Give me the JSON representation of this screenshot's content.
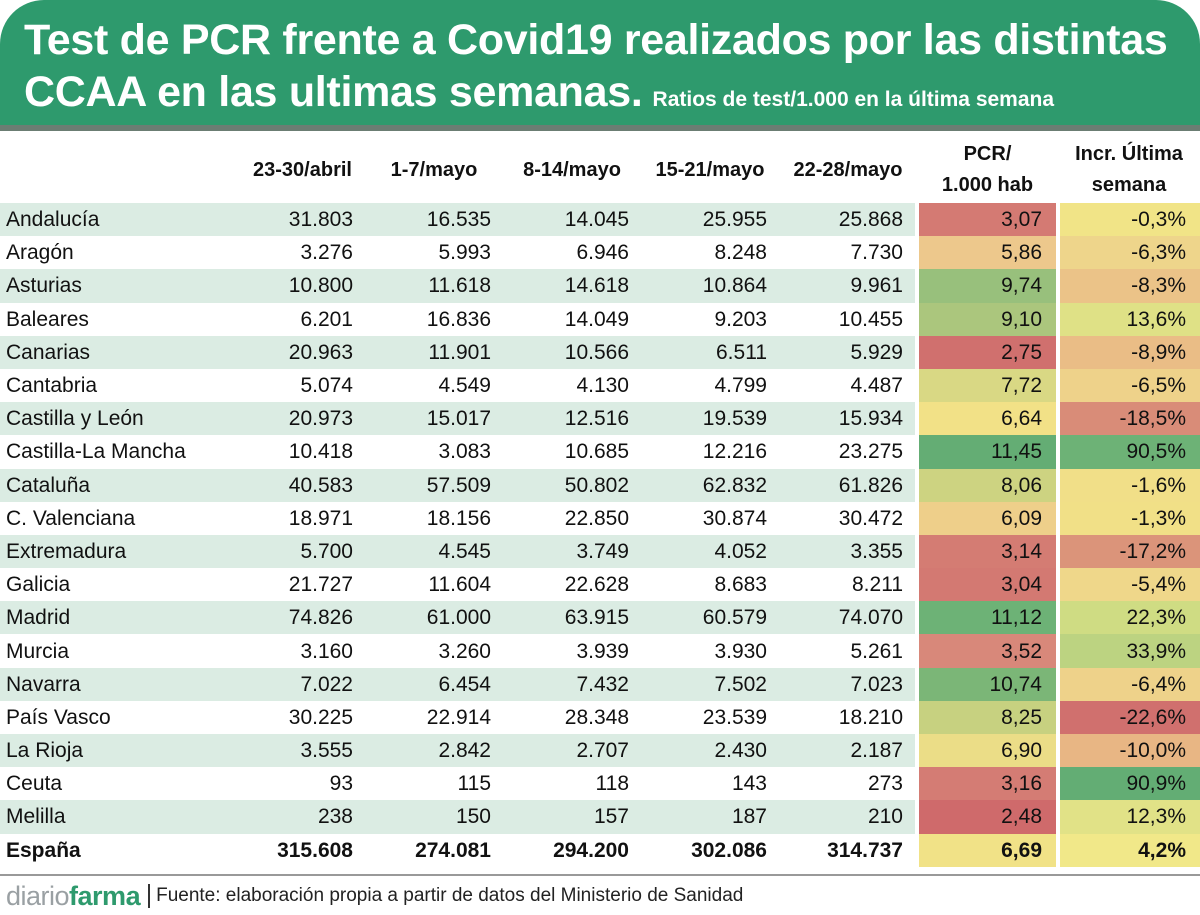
{
  "header": {
    "title_line1": "Test de PCR frente a Covid19 realizados por las distintas",
    "title_line2": "CCAA en las ultimas semanas.",
    "subtitle": "Ratios de test/1.000 en la última semana"
  },
  "colors": {
    "header_green": "#2e9a6d",
    "row_stripe": "#dbece3"
  },
  "footer": {
    "logo_part1": "diario",
    "logo_part2": "farma",
    "source": "Fuente: elaboración propia a partir de datos del Ministerio de Sanidad"
  },
  "chart_data": {
    "type": "table",
    "columns": [
      "",
      "23-30/abril",
      "1-7/mayo",
      "8-14/mayo",
      "15-21/mayo",
      "22-28/mayo",
      "PCR/\n1.000 hab",
      "Incr. Última\nsemana"
    ],
    "column_header_lines": [
      [
        ""
      ],
      [
        "23-30/abril"
      ],
      [
        "1-7/mayo"
      ],
      [
        "8-14/mayo"
      ],
      [
        "15-21/mayo"
      ],
      [
        "22-28/mayo"
      ],
      [
        "PCR/",
        "1.000 hab"
      ],
      [
        "Incr. Última",
        "semana"
      ]
    ],
    "rows": [
      {
        "region": "Andalucía",
        "values": [
          "31.803",
          "16.535",
          "14.045",
          "25.955",
          "25.868"
        ],
        "ratio": "3,07",
        "incr": "-0,3%",
        "ratio_color": "#d47a73",
        "incr_color": "#f1e487"
      },
      {
        "region": "Aragón",
        "values": [
          "3.276",
          "5.993",
          "6.946",
          "8.248",
          "7.730"
        ],
        "ratio": "5,86",
        "incr": "-6,3%",
        "ratio_color": "#edc88c",
        "incr_color": "#eed58b"
      },
      {
        "region": "Asturias",
        "values": [
          "10.800",
          "11.618",
          "14.618",
          "10.864",
          "9.961"
        ],
        "ratio": "9,74",
        "incr": "-8,3%",
        "ratio_color": "#98c07c",
        "incr_color": "#ebc388"
      },
      {
        "region": "Baleares",
        "values": [
          "6.201",
          "16.836",
          "14.049",
          "9.203",
          "10.455"
        ],
        "ratio": "9,10",
        "incr": "13,6%",
        "ratio_color": "#abc67d",
        "incr_color": "#dfe186"
      },
      {
        "region": "Canarias",
        "values": [
          "20.963",
          "11.901",
          "10.566",
          "6.511",
          "5.929"
        ],
        "ratio": "2,75",
        "incr": "-8,9%",
        "ratio_color": "#d0706e",
        "incr_color": "#eabd86"
      },
      {
        "region": "Cantabria",
        "values": [
          "5.074",
          "4.549",
          "4.130",
          "4.799",
          "4.487"
        ],
        "ratio": "7,72",
        "incr": "-6,5%",
        "ratio_color": "#d9d884",
        "incr_color": "#eed28a"
      },
      {
        "region": "Castilla y León",
        "values": [
          "20.973",
          "15.017",
          "12.516",
          "19.539",
          "15.934"
        ],
        "ratio": "6,64",
        "incr": "-18,5%",
        "ratio_color": "#f2e187",
        "incr_color": "#d98c78"
      },
      {
        "region": "Castilla-La Mancha",
        "values": [
          "10.418",
          "3.083",
          "10.685",
          "12.216",
          "23.275"
        ],
        "ratio": "11,45",
        "incr": "90,5%",
        "ratio_color": "#64ad74",
        "incr_color": "#6db276"
      },
      {
        "region": "Cataluña",
        "values": [
          "40.583",
          "57.509",
          "50.802",
          "62.832",
          "61.826"
        ],
        "ratio": "8,06",
        "incr": "-1,6%",
        "ratio_color": "#cdd381",
        "incr_color": "#f1df88"
      },
      {
        "region": "C. Valenciana",
        "values": [
          "18.971",
          "18.156",
          "22.850",
          "30.874",
          "30.472"
        ],
        "ratio": "6,09",
        "incr": "-1,3%",
        "ratio_color": "#eecf8a",
        "incr_color": "#f1e087"
      },
      {
        "region": "Extremadura",
        "values": [
          "5.700",
          "4.545",
          "3.749",
          "4.052",
          "3.355"
        ],
        "ratio": "3,14",
        "incr": "-17,2%",
        "ratio_color": "#d47c73",
        "incr_color": "#db947a"
      },
      {
        "region": "Galicia",
        "values": [
          "21.727",
          "11.604",
          "22.628",
          "8.683",
          "8.211"
        ],
        "ratio": "3,04",
        "incr": "-5,4%",
        "ratio_color": "#d37972",
        "incr_color": "#efd78a"
      },
      {
        "region": "Madrid",
        "values": [
          "74.826",
          "61.000",
          "63.915",
          "60.579",
          "74.070"
        ],
        "ratio": "11,12",
        "incr": "22,3%",
        "ratio_color": "#6db276",
        "incr_color": "#cfdc83"
      },
      {
        "region": "Murcia",
        "values": [
          "3.160",
          "3.260",
          "3.939",
          "3.930",
          "5.261"
        ],
        "ratio": "3,52",
        "incr": "33,9%",
        "ratio_color": "#d8887a",
        "incr_color": "#bcd381"
      },
      {
        "region": "Navarra",
        "values": [
          "7.022",
          "6.454",
          "7.432",
          "7.502",
          "7.023"
        ],
        "ratio": "10,74",
        "incr": "-6,4%",
        "ratio_color": "#7bb677",
        "incr_color": "#eed28a"
      },
      {
        "region": "País Vasco",
        "values": [
          "30.225",
          "22.914",
          "28.348",
          "23.539",
          "18.210"
        ],
        "ratio": "8,25",
        "incr": "-22,6%",
        "ratio_color": "#c7d180",
        "incr_color": "#d0706e"
      },
      {
        "region": "La Rioja",
        "values": [
          "3.555",
          "2.842",
          "2.707",
          "2.430",
          "2.187"
        ],
        "ratio": "6,90",
        "incr": "-10,0%",
        "ratio_color": "#ebdd87",
        "incr_color": "#e8b684"
      },
      {
        "region": "Ceuta",
        "values": [
          "93",
          "115",
          "118",
          "143",
          "273"
        ],
        "ratio": "3,16",
        "incr": "90,9%",
        "ratio_color": "#d47c74",
        "incr_color": "#63ad74"
      },
      {
        "region": "Melilla",
        "values": [
          "238",
          "150",
          "157",
          "187",
          "210"
        ],
        "ratio": "2,48",
        "incr": "12,3%",
        "ratio_color": "#cf6a6b",
        "incr_color": "#e1e287"
      }
    ],
    "total": {
      "region": "España",
      "values": [
        "315.608",
        "274.081",
        "294.200",
        "302.086",
        "314.737"
      ],
      "ratio": "6,69",
      "incr": "4,2%",
      "ratio_color": "#f1e287",
      "incr_color": "#f1e889"
    },
    "ratio_scale": {
      "min": 2.48,
      "max": 11.45,
      "low_color": "#cf6a6b",
      "mid_color": "#f2e287",
      "high_color": "#63ad74"
    },
    "incr_scale": {
      "min": -22.6,
      "max": 90.9,
      "low_color": "#d0706e",
      "mid_color": "#f2e487",
      "high_color": "#63ad74"
    }
  }
}
